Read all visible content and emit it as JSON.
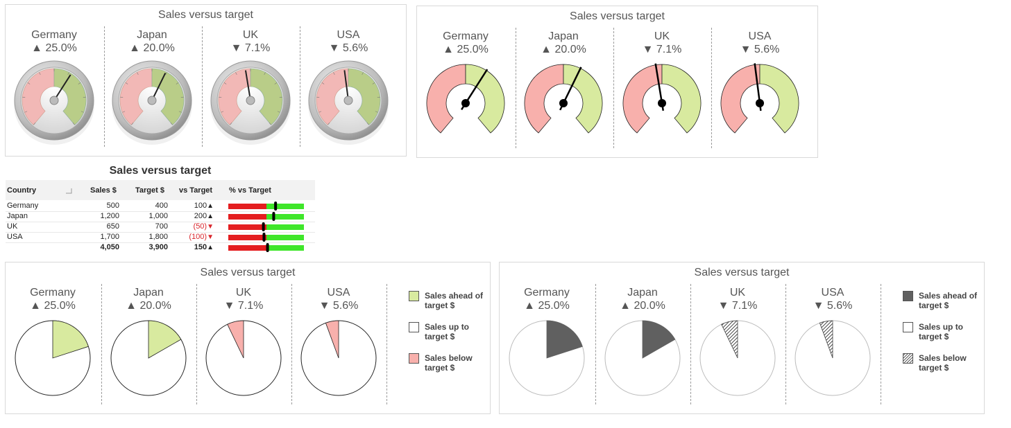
{
  "colors": {
    "ahead": "#d8ea9f",
    "below": "#f8b0ac",
    "dark": "#606060",
    "bar_red": "#e41e20",
    "bar_green": "#3fe62a"
  },
  "panels": {
    "gauge1": {
      "title": "Sales versus target"
    },
    "gauge2": {
      "title": "Sales versus target"
    },
    "table": {
      "title": "Sales versus target"
    },
    "pie1": {
      "title": "Sales versus target"
    },
    "pie2": {
      "title": "Sales versus target"
    }
  },
  "countries": [
    {
      "name": "Germany",
      "pct": "▲ 25.0%"
    },
    {
      "name": "Japan",
      "pct": "▲ 20.0%"
    },
    {
      "name": "UK",
      "pct": "▼ 7.1%"
    },
    {
      "name": "USA",
      "pct": "▼ 5.6%"
    }
  ],
  "table": {
    "headers": [
      "Country",
      "Sales $",
      "Target $",
      "vs Target",
      "% vs Target"
    ],
    "sort_icon": "sort-icon",
    "rows": [
      {
        "country": "Germany",
        "sales": "500",
        "target": "400",
        "vs": "100",
        "vs_arrow": "▲",
        "negative": false
      },
      {
        "country": "Japan",
        "sales": "1,200",
        "target": "1,000",
        "vs": "200",
        "vs_arrow": "▲",
        "negative": false
      },
      {
        "country": "UK",
        "sales": "650",
        "target": "700",
        "vs": "(50)",
        "vs_arrow": "▼",
        "negative": true
      },
      {
        "country": "USA",
        "sales": "1,700",
        "target": "1,800",
        "vs": "(100)",
        "vs_arrow": "▼",
        "negative": true
      }
    ],
    "total": {
      "sales": "4,050",
      "target": "3,900",
      "vs": "150",
      "vs_arrow": "▲"
    }
  },
  "legend": {
    "ahead": "Sales ahead of target $",
    "ahead_l1": "Sales ahead of",
    "ahead_l2": "target $",
    "up": "Sales up to target $",
    "up_l1": "Sales up to",
    "up_l2": "target $",
    "below": "Sales below target $",
    "below_l1": "Sales below",
    "below_l2": "target $"
  },
  "chart_data": [
    {
      "type": "gauge",
      "title": "Sales versus target",
      "categories": [
        "Germany",
        "Japan",
        "UK",
        "USA"
      ],
      "sales": [
        500,
        1200,
        650,
        1700
      ],
      "target": [
        400,
        1000,
        700,
        1800
      ],
      "pct_vs_target": [
        25.0,
        20.0,
        -7.1,
        -5.6
      ]
    },
    {
      "type": "gauge",
      "title": "Sales versus target",
      "categories": [
        "Germany",
        "Japan",
        "UK",
        "USA"
      ],
      "sales": [
        500,
        1200,
        650,
        1700
      ],
      "target": [
        400,
        1000,
        700,
        1800
      ],
      "pct_vs_target": [
        25.0,
        20.0,
        -7.1,
        -5.6
      ]
    },
    {
      "type": "table",
      "title": "Sales versus target",
      "columns": [
        "Country",
        "Sales $",
        "Target $",
        "vs Target",
        "% vs Target"
      ],
      "rows": [
        [
          "Germany",
          500,
          400,
          100
        ],
        [
          "Japan",
          1200,
          1000,
          200
        ],
        [
          "UK",
          650,
          700,
          -50
        ],
        [
          "USA",
          1700,
          1800,
          -100
        ]
      ],
      "total": [
        4050,
        3900,
        150
      ],
      "bullet_ratio": [
        1.25,
        1.2,
        0.929,
        0.944,
        1.038
      ]
    },
    {
      "type": "pie",
      "title": "Sales versus target",
      "categories": [
        "Germany",
        "Japan",
        "UK",
        "USA"
      ],
      "slice_fraction": [
        0.2,
        0.167,
        0.071,
        0.056
      ],
      "slice_kind": [
        "ahead",
        "ahead",
        "below",
        "below"
      ],
      "legend": [
        "Sales ahead of target $",
        "Sales up to target $",
        "Sales below target $"
      ]
    },
    {
      "type": "pie",
      "title": "Sales versus target",
      "categories": [
        "Germany",
        "Japan",
        "UK",
        "USA"
      ],
      "slice_fraction": [
        0.2,
        0.167,
        0.071,
        0.056
      ],
      "slice_kind": [
        "ahead",
        "ahead",
        "below",
        "below"
      ],
      "legend": [
        "Sales ahead of target $",
        "Sales up to target $",
        "Sales below target $"
      ]
    }
  ]
}
